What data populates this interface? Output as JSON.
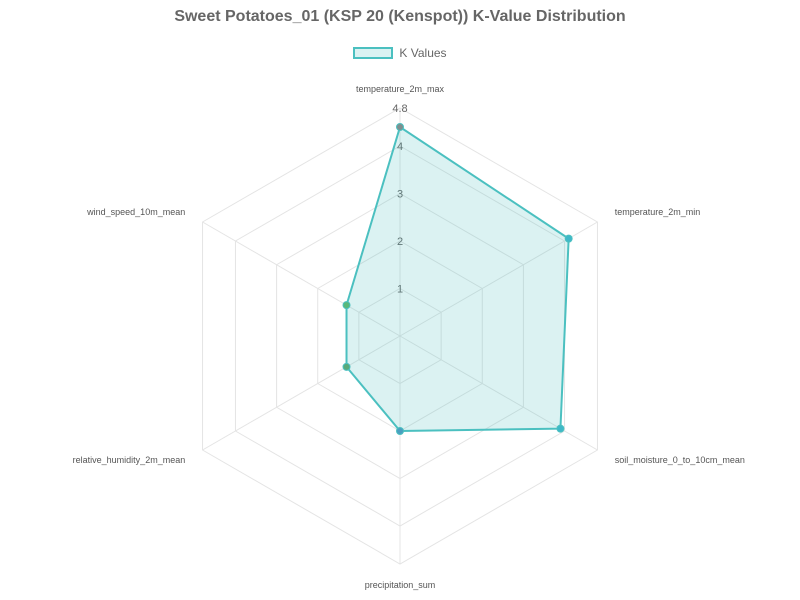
{
  "chart_data": {
    "type": "radar",
    "title": "Sweet Potatoes_01 (KSP 20 (Kenspot)) K-Value Distribution",
    "categories": [
      "temperature_2m_max",
      "temperature_2m_min",
      "soil_moisture_0_to_10cm_mean",
      "precipitation_sum",
      "relative_humidity_2m_mean",
      "wind_speed_10m_mean"
    ],
    "series": [
      {
        "name": "K Values",
        "values": [
          4.4,
          4.1,
          3.9,
          2.0,
          1.3,
          1.3
        ],
        "color": "#4bc0c0",
        "fill": "rgba(75,192,192,0.2)"
      }
    ],
    "rlim": [
      0,
      4.8
    ],
    "ticks": [
      "1",
      "2",
      "3",
      "4",
      "4.8"
    ],
    "tick_values": [
      1,
      2,
      3,
      4,
      4.8
    ],
    "point_colors": [
      "#7f8f8f",
      "#3fb8c8",
      "#3fb8c8",
      "#4a9fc0",
      "#5aaa7a",
      "#5ab87a"
    ],
    "legend": "top",
    "grid": true
  }
}
